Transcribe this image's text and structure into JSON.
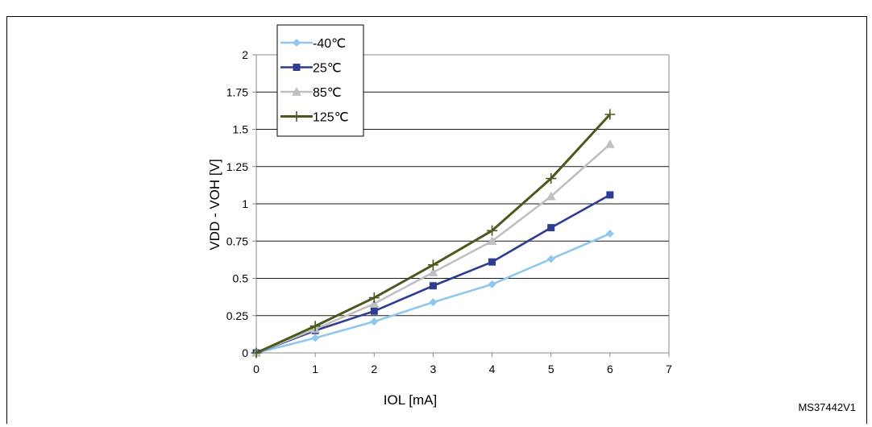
{
  "chart_data": {
    "type": "line",
    "title": "",
    "xlabel": "IOL [mA]",
    "ylabel": "VDD - VOH [V]",
    "xlim": [
      0,
      7
    ],
    "ylim": [
      0,
      2
    ],
    "x_ticks": [
      "0",
      "1",
      "2",
      "3",
      "4",
      "5",
      "6",
      "7"
    ],
    "y_ticks": [
      "0",
      "0.25",
      "0.5",
      "0.75",
      "1",
      "1.25",
      "1.5",
      "1.75",
      "2"
    ],
    "grid": "horizontal",
    "legend_position": "top-left",
    "x": [
      0,
      1,
      2,
      3,
      4,
      5,
      6
    ],
    "series": [
      {
        "name": "-40℃",
        "values": [
          0,
          0.1,
          0.21,
          0.34,
          0.46,
          0.63,
          0.8
        ],
        "color": "#8EC8EC",
        "marker": "diamond"
      },
      {
        "name": "25℃",
        "values": [
          0,
          0.15,
          0.28,
          0.45,
          0.61,
          0.84,
          1.06
        ],
        "color": "#2E3D92",
        "marker": "square"
      },
      {
        "name": "85℃",
        "values": [
          0,
          0.16,
          0.33,
          0.54,
          0.75,
          1.05,
          1.4
        ],
        "color": "#C0C0C4",
        "marker": "triangle"
      },
      {
        "name": "125℃",
        "values": [
          0,
          0.18,
          0.37,
          0.59,
          0.82,
          1.17,
          1.6
        ],
        "color": "#4A5A1E",
        "marker": "plus"
      }
    ]
  },
  "reference_code": "MS37442V1"
}
